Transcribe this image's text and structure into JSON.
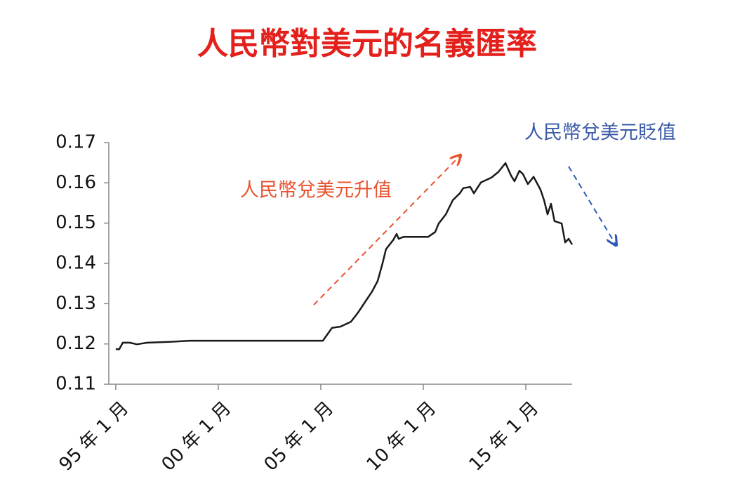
{
  "chart_data": {
    "type": "line",
    "title": "人民幣對美元的名義匯率",
    "annotations": [
      "人民幣兌美元升值",
      "人民幣兌美元貶值"
    ],
    "x": [
      1995.0,
      1995.17,
      1995.34,
      1995.68,
      1996.03,
      1996.54,
      1997.57,
      1998.6,
      1999.62,
      2005.1,
      2005.55,
      2005.96,
      2006.47,
      2006.82,
      2007.16,
      2007.5,
      2007.77,
      2008.01,
      2008.18,
      2008.53,
      2008.7,
      2008.8,
      2009.04,
      2010.24,
      2010.58,
      2010.75,
      2011.1,
      2011.44,
      2011.78,
      2011.95,
      2012.29,
      2012.47,
      2012.81,
      2013.32,
      2013.66,
      2014.01,
      2014.28,
      2014.45,
      2014.69,
      2014.86,
      2015.1,
      2015.38,
      2015.72,
      2015.89,
      2016.06,
      2016.23,
      2016.4,
      2016.75,
      2016.92,
      2017.09,
      2017.26
    ],
    "series": [
      {
        "color": "#1a1a1a",
        "values": [
          0.1187,
          0.1187,
          0.1203,
          0.1203,
          0.1199,
          0.1203,
          0.1205,
          0.1208,
          0.1208,
          0.1208,
          0.124,
          0.1243,
          0.1255,
          0.1278,
          0.1304,
          0.133,
          0.1356,
          0.14,
          0.1435,
          0.1458,
          0.1473,
          0.1461,
          0.1466,
          0.1466,
          0.1478,
          0.1499,
          0.1522,
          0.1557,
          0.1574,
          0.1587,
          0.159,
          0.1574,
          0.1601,
          0.1613,
          0.1627,
          0.1649,
          0.1618,
          0.1604,
          0.163,
          0.1622,
          0.1597,
          0.1615,
          0.1583,
          0.1557,
          0.1522,
          0.1548,
          0.1505,
          0.1499,
          0.1452,
          0.1461,
          0.1447
        ]
      }
    ],
    "xlim": [
      1994.66,
      2017.26
    ],
    "xticks": [
      {
        "value": 1995,
        "label": "95 年 1 月"
      },
      {
        "value": 2000,
        "label": "00 年 1 月"
      },
      {
        "value": 2005,
        "label": "05 年 1 月"
      },
      {
        "value": 2010,
        "label": "10 年 1 月"
      },
      {
        "value": 2015,
        "label": "15 年 1 月"
      }
    ],
    "ylim": [
      0.11,
      0.17
    ],
    "yticks": [
      0.11,
      0.12,
      0.13,
      0.14,
      0.15,
      0.16,
      0.17
    ],
    "grid": false
  }
}
